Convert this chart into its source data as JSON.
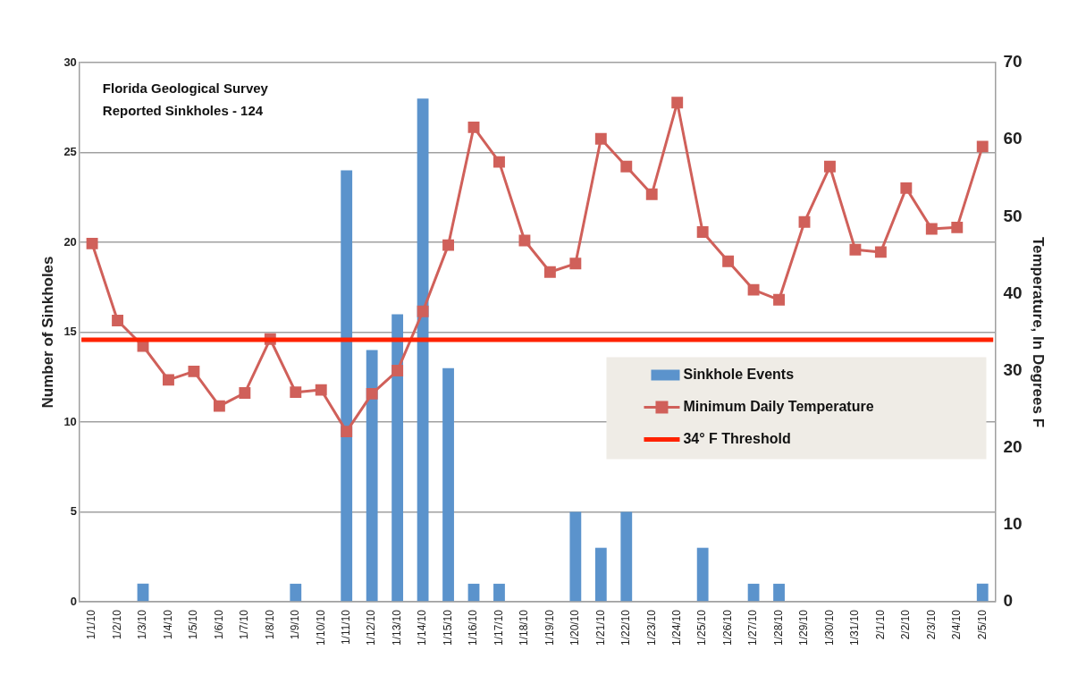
{
  "chart_data": {
    "type": "bar",
    "categories": [
      "1/1/10",
      "1/2/10",
      "1/3/10",
      "1/4/10",
      "1/5/10",
      "1/6/10",
      "1/7/10",
      "1/8/10",
      "1/9/10",
      "1/10/10",
      "1/11/10",
      "1/12/10",
      "1/13/10",
      "1/14/10",
      "1/15/10",
      "1/16/10",
      "1/17/10",
      "1/18/10",
      "1/19/10",
      "1/20/10",
      "1/21/10",
      "1/22/10",
      "1/23/10",
      "1/24/10",
      "1/25/10",
      "1/26/10",
      "1/27/10",
      "1/28/10",
      "1/29/10",
      "1/30/10",
      "1/31/10",
      "2/1/10",
      "2/2/10",
      "2/3/10",
      "2/4/10",
      "2/5/10"
    ],
    "series": [
      {
        "name": "Sinkhole Events",
        "color": "#5b93cc",
        "values": [
          0,
          0,
          1,
          0,
          0,
          0,
          0,
          0,
          1,
          0,
          24,
          14,
          16,
          28,
          13,
          1,
          1,
          0,
          0,
          5,
          3,
          5,
          0,
          0,
          3,
          0,
          1,
          1,
          0,
          0,
          0,
          0,
          0,
          0,
          0,
          1
        ]
      },
      {
        "name": "Minimum Daily Temperature",
        "type": "line",
        "axis": "y2",
        "color": "#d0605a",
        "marker": "square",
        "values": [
          46.5,
          36.5,
          33.2,
          28.8,
          29.9,
          25.4,
          27.1,
          34.1,
          27.2,
          27.5,
          22.1,
          27.0,
          30.0,
          37.7,
          46.3,
          61.6,
          57.1,
          46.9,
          42.8,
          43.9,
          60.1,
          56.5,
          52.9,
          64.8,
          48.0,
          44.2,
          40.5,
          39.2,
          49.3,
          56.5,
          45.7,
          45.4,
          53.7,
          48.4,
          48.6,
          59.1
        ]
      }
    ],
    "ylabel": "Number of Sinkholes",
    "y2label": "Temperature, In Degrees F",
    "ylim": [
      0,
      30
    ],
    "yticks": [
      0,
      5,
      10,
      15,
      20,
      25,
      30
    ],
    "y2lim": [
      0,
      70
    ],
    "y2ticks": [
      0,
      10,
      20,
      30,
      40,
      50,
      60,
      70
    ],
    "ref_lines": [
      {
        "axis": "y2",
        "value": 34,
        "label": "34° F Threshold",
        "color": "#ff2200"
      }
    ],
    "annotations": [
      "Florida Geological Survey\nReported Sinkholes - 124"
    ],
    "grid": "y",
    "legend": "right"
  }
}
